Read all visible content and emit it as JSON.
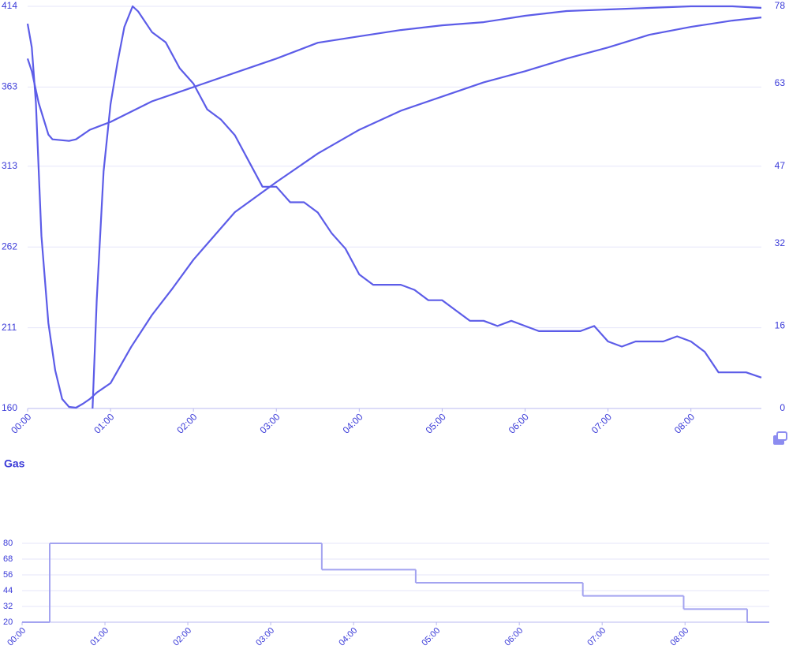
{
  "chart_data": [
    {
      "type": "line",
      "xlim": [
        0,
        531
      ],
      "xticks": [
        {
          "value": 0,
          "label": "00:00"
        },
        {
          "value": 60,
          "label": "01:00"
        },
        {
          "value": 120,
          "label": "02:00"
        },
        {
          "value": 180,
          "label": "03:00"
        },
        {
          "value": 240,
          "label": "04:00"
        },
        {
          "value": 300,
          "label": "05:00"
        },
        {
          "value": 360,
          "label": "06:00"
        },
        {
          "value": 420,
          "label": "07:00"
        },
        {
          "value": 480,
          "label": "08:00"
        }
      ],
      "ylim": [
        160,
        414
      ],
      "yticks": [
        160,
        211,
        262,
        313,
        363,
        414
      ],
      "y2lim": [
        0,
        78
      ],
      "y2ticks": [
        0,
        16,
        32,
        47,
        63,
        78
      ],
      "grid": true,
      "series": [
        {
          "color": "#5c5ce8",
          "x": [
            0,
            3,
            6,
            10,
            15,
            20,
            25,
            30,
            35,
            40,
            45,
            50,
            60,
            75,
            90,
            105,
            120,
            150,
            180,
            210,
            240,
            270,
            300,
            330,
            360,
            390,
            420,
            450,
            480,
            510,
            531
          ],
          "values": [
            403,
            388,
            353,
            269,
            214,
            184,
            166,
            161,
            160.5,
            163,
            166,
            170,
            176,
            199,
            219,
            236,
            254,
            284,
            303,
            321,
            336,
            348,
            357,
            366,
            373,
            381,
            388,
            396,
            401,
            405,
            407
          ]
        },
        {
          "color": "#5c5ce8",
          "x": [
            0,
            3,
            8,
            15,
            18,
            30,
            35,
            45,
            60,
            90,
            120,
            150,
            180,
            210,
            240,
            270,
            300,
            330,
            360,
            390,
            420,
            450,
            480,
            510,
            531
          ],
          "values": [
            381,
            373,
            353,
            333,
            330,
            329,
            330,
            336,
            341,
            354,
            363,
            372,
            381,
            391,
            395,
            399,
            402,
            404,
            408,
            411,
            412,
            413,
            414,
            414,
            413
          ]
        },
        {
          "color": "#5c5ce8",
          "axis": "y2",
          "x": [
            47,
            50,
            55,
            60,
            65,
            70,
            76,
            80,
            90,
            100,
            110,
            120,
            130,
            140,
            150,
            160,
            170,
            180,
            190,
            200,
            210,
            220,
            230,
            240,
            250,
            260,
            270,
            280,
            290,
            300,
            310,
            320,
            330,
            340,
            350,
            360,
            370,
            380,
            390,
            400,
            410,
            420,
            430,
            440,
            450,
            460,
            470,
            480,
            490,
            500,
            510,
            520,
            531
          ],
          "values": [
            0,
            21,
            46,
            59,
            67,
            74,
            78,
            77,
            73,
            71,
            66,
            63,
            58,
            56,
            53,
            48,
            43,
            43,
            40,
            40,
            38,
            34,
            31,
            26,
            24,
            24,
            24,
            23,
            21,
            21,
            19,
            17,
            17,
            16,
            17,
            16,
            15,
            15,
            15,
            15,
            16,
            13,
            12,
            13,
            13,
            13,
            14,
            13,
            11,
            7,
            7,
            7,
            6
          ]
        }
      ]
    },
    {
      "type": "step",
      "title": "Gas",
      "xlim": [
        0,
        541
      ],
      "xticks": [
        {
          "value": 0,
          "label": "00:00"
        },
        {
          "value": 60,
          "label": "01:00"
        },
        {
          "value": 120,
          "label": "02:00"
        },
        {
          "value": 180,
          "label": "03:00"
        },
        {
          "value": 240,
          "label": "04:00"
        },
        {
          "value": 300,
          "label": "05:00"
        },
        {
          "value": 360,
          "label": "06:00"
        },
        {
          "value": 420,
          "label": "07:00"
        },
        {
          "value": 480,
          "label": "08:00"
        }
      ],
      "ylim": [
        20,
        80
      ],
      "yticks": [
        20,
        32,
        44,
        56,
        68,
        80
      ],
      "grid": true,
      "series": [
        {
          "color": "#a3a3f0",
          "x": [
            0,
            20,
            217,
            285,
            406,
            479,
            525
          ],
          "values": [
            20,
            80,
            60,
            50,
            40,
            30,
            20
          ]
        }
      ]
    }
  ]
}
